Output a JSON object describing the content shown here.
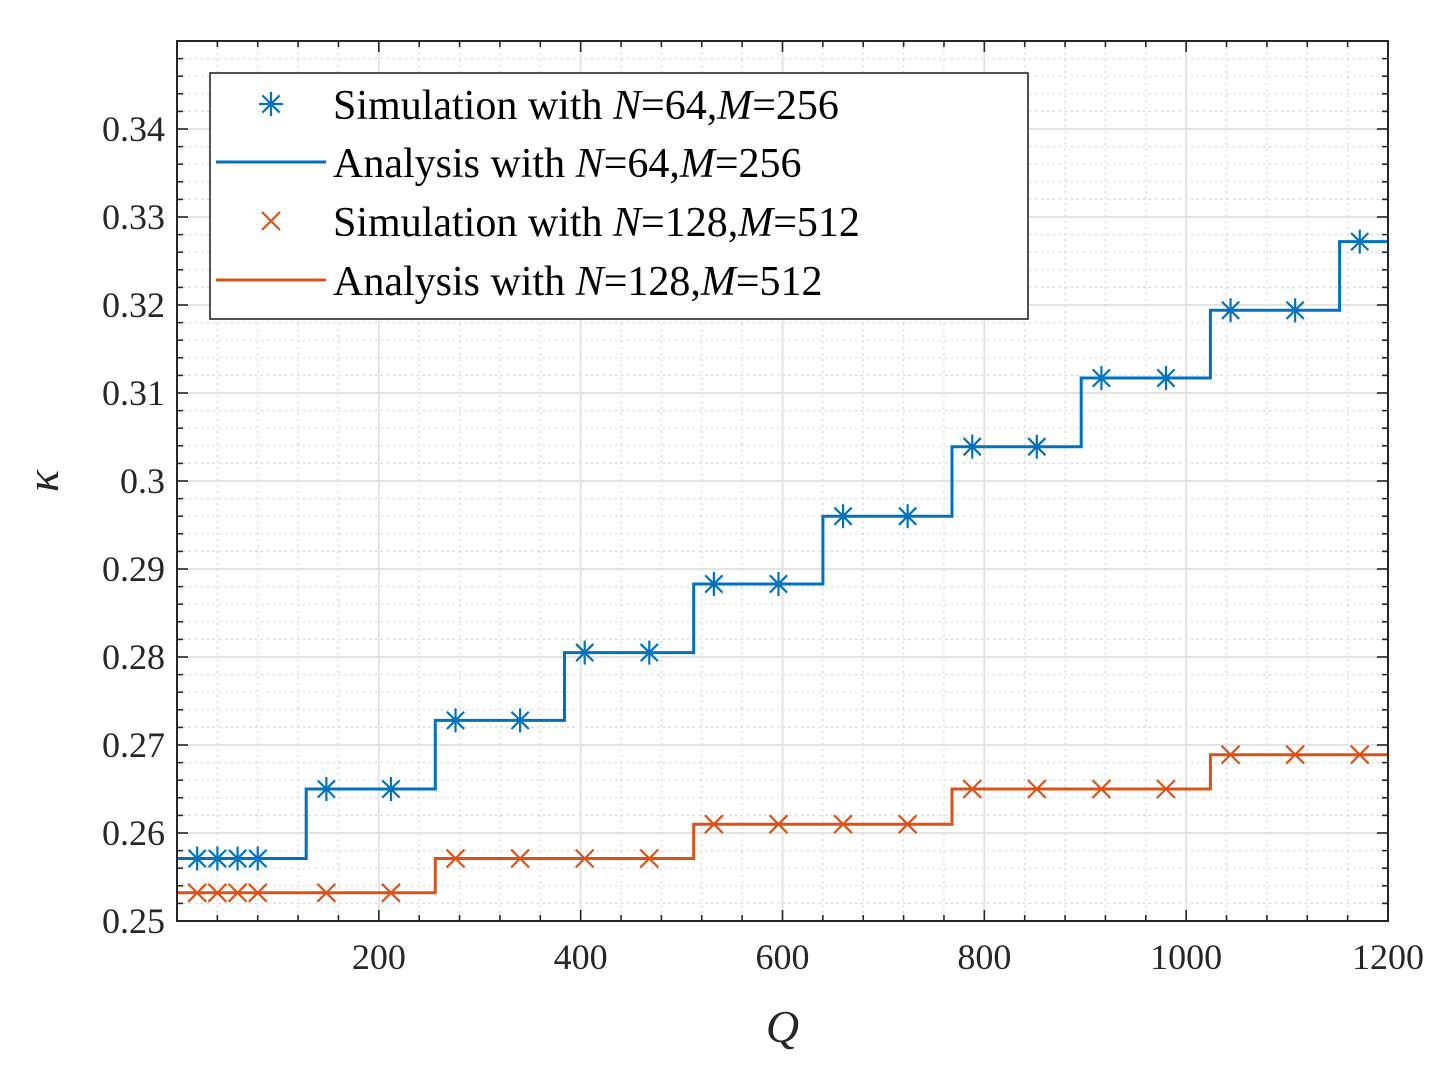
{
  "chart_data": {
    "type": "line",
    "title": "",
    "xlabel": "Q",
    "ylabel": "κ",
    "xlim": [
      0,
      1200
    ],
    "ylim": [
      0.25,
      0.35
    ],
    "xticks": [
      200,
      400,
      600,
      800,
      1000,
      1200
    ],
    "xtick_labels": [
      "200",
      "400",
      "600",
      "800",
      "1000",
      "1200"
    ],
    "yticks": [
      0.25,
      0.26,
      0.27,
      0.28,
      0.29,
      0.3,
      0.31,
      0.32,
      0.33,
      0.34
    ],
    "ytick_labels": [
      "0.25",
      "0.26",
      "0.27",
      "0.28",
      "0.29",
      "0.3",
      "0.31",
      "0.32",
      "0.33",
      "0.34"
    ],
    "grid": true,
    "minor_grid": true,
    "legend_position": "top-left",
    "series": [
      {
        "name": "Simulation with N=64,M=256",
        "legend_parts": [
          "Simulation with ",
          "N",
          "=64,",
          "M",
          "=256"
        ],
        "kind": "markers",
        "marker": "asterisk",
        "color": "#0072BD",
        "x": [
          20,
          40,
          60,
          80,
          148,
          212,
          276,
          340,
          404,
          468,
          532,
          596,
          660,
          724,
          788,
          852,
          916,
          980,
          1044,
          1108,
          1172
        ],
        "y": [
          0.2571,
          0.2571,
          0.2571,
          0.2571,
          0.265,
          0.265,
          0.2728,
          0.2728,
          0.2805,
          0.2805,
          0.2883,
          0.2883,
          0.296,
          0.296,
          0.3039,
          0.3039,
          0.3117,
          0.3117,
          0.3194,
          0.3194,
          0.3272
        ]
      },
      {
        "name": "Analysis with N=64,M=256",
        "legend_parts": [
          "Analysis with ",
          "N",
          "=64,",
          "M",
          "=256"
        ],
        "kind": "line",
        "color": "#0072BD",
        "x": [
          0,
          128,
          128,
          256,
          256,
          384,
          384,
          512,
          512,
          640,
          640,
          768,
          768,
          896,
          896,
          1024,
          1024,
          1152,
          1152,
          1200
        ],
        "y": [
          0.2571,
          0.2571,
          0.265,
          0.265,
          0.2728,
          0.2728,
          0.2805,
          0.2805,
          0.2883,
          0.2883,
          0.296,
          0.296,
          0.3039,
          0.3039,
          0.3117,
          0.3117,
          0.3194,
          0.3194,
          0.3272,
          0.3272
        ]
      },
      {
        "name": "Simulation with N=128,M=512",
        "legend_parts": [
          "Simulation with ",
          "N",
          "=128,",
          "M",
          "=512"
        ],
        "kind": "markers",
        "marker": "x",
        "color": "#D95319",
        "x": [
          20,
          40,
          60,
          80,
          148,
          212,
          276,
          340,
          404,
          468,
          532,
          596,
          660,
          724,
          788,
          852,
          916,
          980,
          1044,
          1108,
          1172
        ],
        "y": [
          0.2532,
          0.2532,
          0.2532,
          0.2532,
          0.2532,
          0.2532,
          0.2571,
          0.2571,
          0.2571,
          0.2571,
          0.261,
          0.261,
          0.261,
          0.261,
          0.265,
          0.265,
          0.265,
          0.265,
          0.2689,
          0.2689,
          0.2689
        ]
      },
      {
        "name": "Analysis with N=128,M=512",
        "legend_parts": [
          "Analysis with ",
          "N",
          "=128,",
          "M",
          "=512"
        ],
        "kind": "line",
        "color": "#D95319",
        "x": [
          0,
          256,
          256,
          512,
          512,
          768,
          768,
          1024,
          1024,
          1200
        ],
        "y": [
          0.2532,
          0.2532,
          0.2571,
          0.2571,
          0.261,
          0.261,
          0.265,
          0.265,
          0.2689,
          0.2689
        ]
      }
    ]
  }
}
